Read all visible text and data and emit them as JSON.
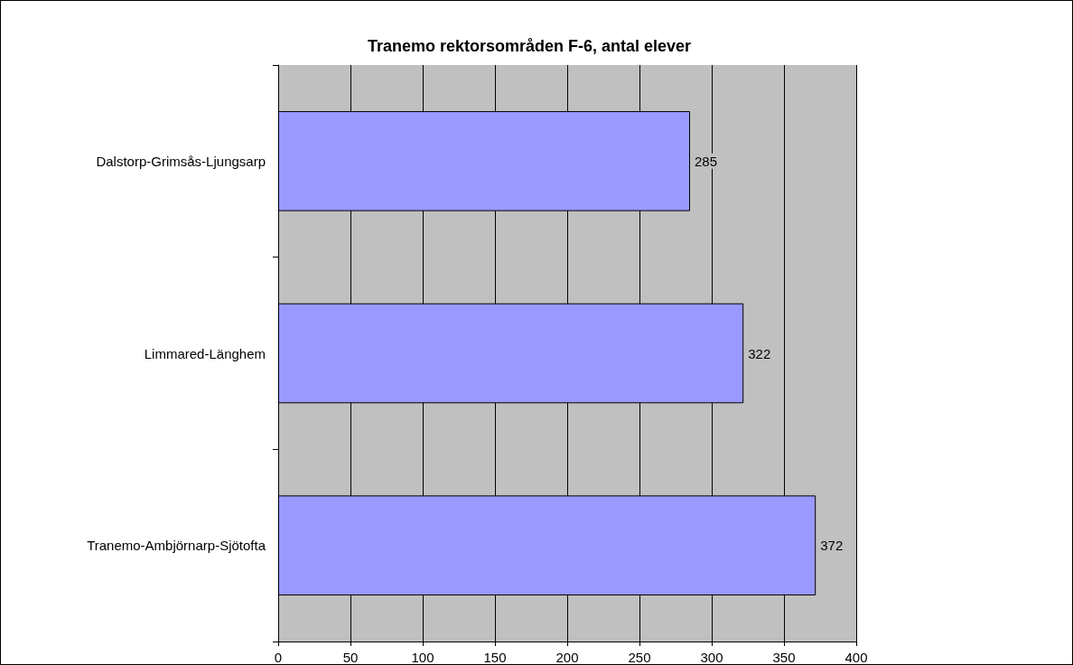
{
  "chart_data": {
    "type": "bar",
    "orientation": "horizontal",
    "title": "Tranemo rektorsområden F-6, antal elever",
    "categories": [
      "Dalstorp-Grimsås-Ljungsarp",
      "Limmared-Länghem",
      "Tranemo-Ambjörnarp-Sjötofta"
    ],
    "values": [
      285,
      322,
      372
    ],
    "color": "#9999ff",
    "xlim": [
      0,
      400
    ],
    "xticks": [
      0,
      50,
      100,
      150,
      200,
      250,
      300,
      350,
      400
    ],
    "grid": "x",
    "data_labels": true
  }
}
